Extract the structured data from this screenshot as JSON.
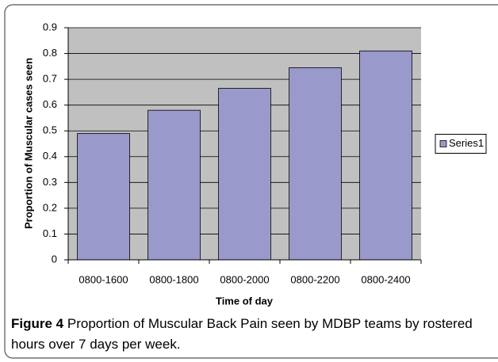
{
  "chart_data": {
    "type": "bar",
    "x_label": "Time of day",
    "y_label": "Proportion of Muscular cases seen",
    "categories": [
      "0800-1600",
      "0800-1800",
      "0800-2000",
      "0800-2200",
      "0800-2400"
    ],
    "series": [
      {
        "name": "Series1",
        "color": "#9999cc",
        "values": [
          0.49,
          0.58,
          0.665,
          0.745,
          0.81
        ]
      }
    ],
    "ylim": [
      0,
      0.9
    ],
    "yticks": [
      0,
      0.1,
      0.2,
      0.3,
      0.4,
      0.5,
      0.6,
      0.7,
      0.8,
      0.9
    ],
    "grid": true,
    "legend": "right"
  },
  "caption": {
    "label": "Figure 4",
    "text": "Proportion of Muscular Back Pain seen by MDBP teams by rostered hours over 7 days per week."
  }
}
